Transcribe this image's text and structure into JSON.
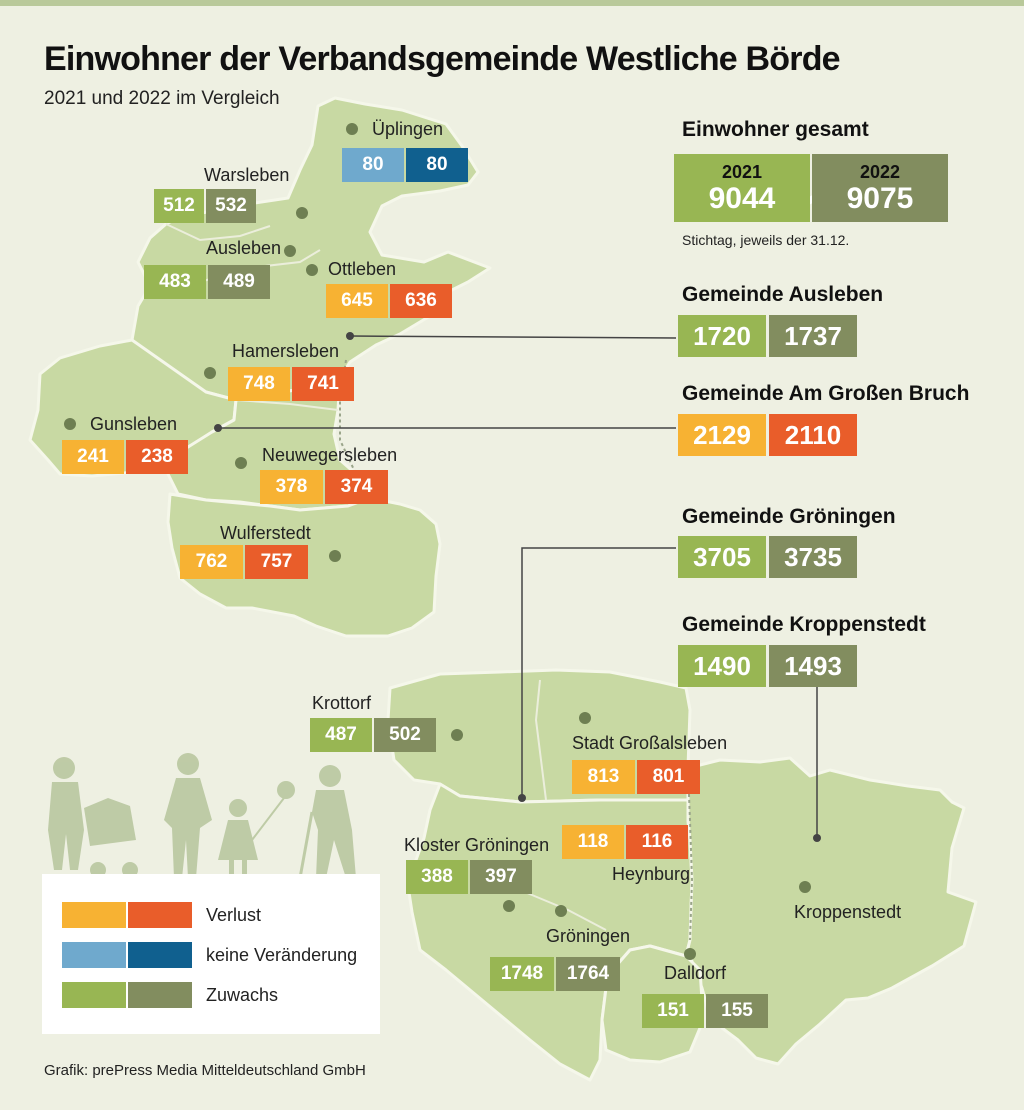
{
  "title": "Einwohner der Verbandsgemeinde Westliche Börde",
  "subtitle": "2021 und 2022 im Vergleich",
  "colors": {
    "loss": [
      "#f7b233",
      "#e95d2a"
    ],
    "same": [
      "#6fa9cd",
      "#10608f"
    ],
    "gain": [
      "#98b653",
      "#828d5f"
    ]
  },
  "places": [
    {
      "name": "Üplingen",
      "v2021": "80",
      "v2022": "80",
      "status": "same"
    },
    {
      "name": "Warsleben",
      "v2021": "512",
      "v2022": "532",
      "status": "gain"
    },
    {
      "name": "Ausleben",
      "v2021": "483",
      "v2022": "489",
      "status": "gain"
    },
    {
      "name": "Ottleben",
      "v2021": "645",
      "v2022": "636",
      "status": "loss"
    },
    {
      "name": "Hamersleben",
      "v2021": "748",
      "v2022": "741",
      "status": "loss"
    },
    {
      "name": "Gunsleben",
      "v2021": "241",
      "v2022": "238",
      "status": "loss"
    },
    {
      "name": "Neuwegersleben",
      "v2021": "378",
      "v2022": "374",
      "status": "loss"
    },
    {
      "name": "Wulferstedt",
      "v2021": "762",
      "v2022": "757",
      "status": "loss"
    },
    {
      "name": "Krottorf",
      "v2021": "487",
      "v2022": "502",
      "status": "gain"
    },
    {
      "name": "Stadt Großalsleben",
      "v2021": "813",
      "v2022": "801",
      "status": "loss"
    },
    {
      "name": "Kloster Gröningen",
      "v2021": "388",
      "v2022": "397",
      "status": "gain"
    },
    {
      "name": "Heynburg",
      "v2021": "118",
      "v2022": "116",
      "status": "loss"
    },
    {
      "name": "Gröningen",
      "v2021": "1748",
      "v2022": "1764",
      "status": "gain"
    },
    {
      "name": "Dalldorf",
      "v2021": "151",
      "v2022": "155",
      "status": "gain"
    },
    {
      "name": "Kroppenstedt",
      "v2021": "",
      "v2022": "",
      "status": "gain"
    }
  ],
  "total": {
    "label": "Einwohner gesamt",
    "year1": "2021",
    "value1": "9044",
    "year2": "2022",
    "value2": "9075",
    "note": "Stichtag, jeweils der 31.12."
  },
  "gemeinden": [
    {
      "label": "Gemeinde Ausleben",
      "v2021": "1720",
      "v2022": "1737",
      "status": "gain"
    },
    {
      "label": "Gemeinde Am Großen Bruch",
      "v2021": "2129",
      "v2022": "2110",
      "status": "loss"
    },
    {
      "label": "Gemeinde Gröningen",
      "v2021": "3705",
      "v2022": "3735",
      "status": "gain"
    },
    {
      "label": "Gemeinde Kroppenstedt",
      "v2021": "1490",
      "v2022": "1493",
      "status": "gain"
    }
  ],
  "legend": [
    {
      "label": "Verlust",
      "status": "loss"
    },
    {
      "label": "keine Veränderung",
      "status": "same"
    },
    {
      "label": "Zuwachs",
      "status": "gain"
    }
  ],
  "credit": "Grafik: prePress Media Mitteldeutschland GmbH"
}
